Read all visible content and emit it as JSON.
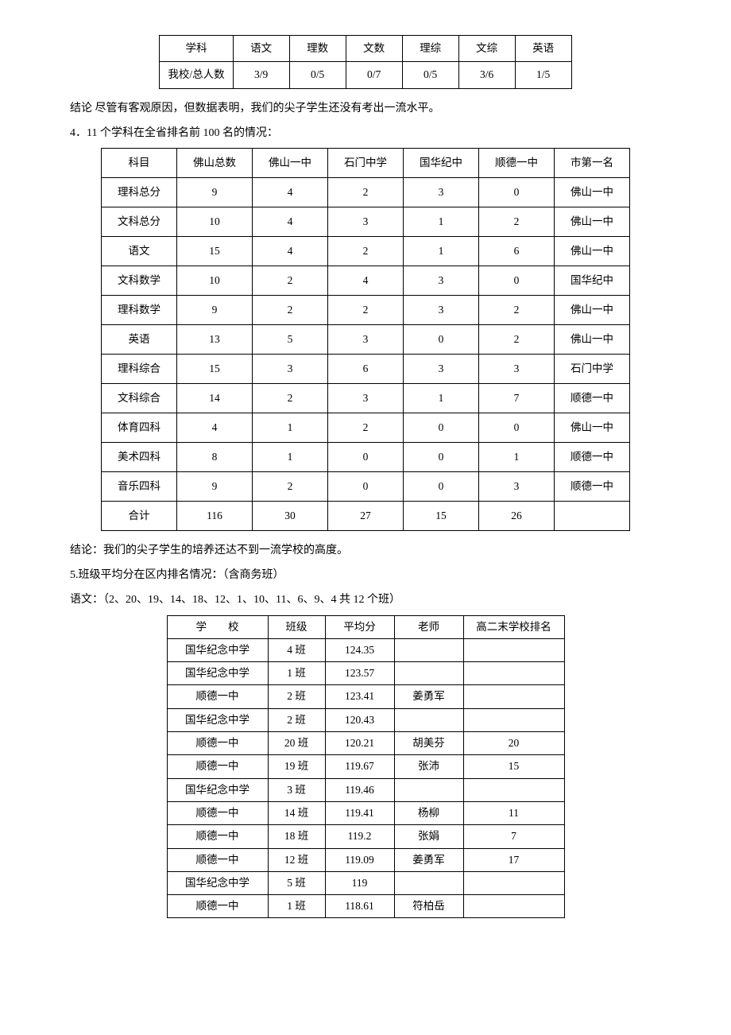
{
  "table1": {
    "headers": [
      "学科",
      "语文",
      "理数",
      "文数",
      "理综",
      "文综",
      "英语"
    ],
    "rowLabel": "我校/总人数",
    "values": [
      "3/9",
      "0/5",
      "0/7",
      "0/5",
      "3/6",
      "1/5"
    ]
  },
  "para1": "结论 尽管有客观原因，但数据表明，我们的尖子学生还没有考出一流水平。",
  "para2": "4．11 个学科在全省排名前 100 名的情况：",
  "table2": {
    "headers": [
      "科目",
      "佛山总数",
      "佛山一中",
      "石门中学",
      "国华纪中",
      "顺德一中",
      "市第一名"
    ],
    "rows": [
      [
        "理科总分",
        "9",
        "4",
        "2",
        "3",
        "0",
        "佛山一中"
      ],
      [
        "文科总分",
        "10",
        "4",
        "3",
        "1",
        "2",
        "佛山一中"
      ],
      [
        "语文",
        "15",
        "4",
        "2",
        "1",
        "6",
        "佛山一中"
      ],
      [
        "文科数学",
        "10",
        "2",
        "4",
        "3",
        "0",
        "国华纪中"
      ],
      [
        "理科数学",
        "9",
        "2",
        "2",
        "3",
        "2",
        "佛山一中"
      ],
      [
        "英语",
        "13",
        "5",
        "3",
        "0",
        "2",
        "佛山一中"
      ],
      [
        "理科综合",
        "15",
        "3",
        "6",
        "3",
        "3",
        "石门中学"
      ],
      [
        "文科综合",
        "14",
        "2",
        "3",
        "1",
        "7",
        "顺德一中"
      ],
      [
        "体育四科",
        "4",
        "1",
        "2",
        "0",
        "0",
        "佛山一中"
      ],
      [
        "美术四科",
        "8",
        "1",
        "0",
        "0",
        "1",
        "顺德一中"
      ],
      [
        "音乐四科",
        "9",
        "2",
        "0",
        "0",
        "3",
        "顺德一中"
      ],
      [
        "合计",
        "116",
        "30",
        "27",
        "15",
        "26",
        ""
      ]
    ]
  },
  "para3": "结论：我们的尖子学生的培养还达不到一流学校的高度。",
  "para4": "5.班级平均分在区内排名情况：（含商务班）",
  "para5": "语文：（2、20、19、14、18、12、1、10、11、6、9、4 共 12 个班）",
  "table3": {
    "headers": [
      "学　　校",
      "班级",
      "平均分",
      "老师",
      "高二末学校排名"
    ],
    "rows": [
      [
        "国华纪念中学",
        "4 班",
        "124.35",
        "",
        ""
      ],
      [
        "国华纪念中学",
        "1 班",
        "123.57",
        "",
        ""
      ],
      [
        "顺德一中",
        "2 班",
        "123.41",
        "姜勇军",
        ""
      ],
      [
        "国华纪念中学",
        "2 班",
        "120.43",
        "",
        ""
      ],
      [
        "顺德一中",
        "20 班",
        "120.21",
        "胡美芬",
        "20"
      ],
      [
        "顺德一中",
        "19 班",
        "119.67",
        "张沛",
        "15"
      ],
      [
        "国华纪念中学",
        "3 班",
        "119.46",
        "",
        ""
      ],
      [
        "顺德一中",
        "14 班",
        "119.41",
        "杨柳",
        "11"
      ],
      [
        "顺德一中",
        "18 班",
        "119.2",
        "张娟",
        "7"
      ],
      [
        "顺德一中",
        "12 班",
        "119.09",
        "姜勇军",
        "17"
      ],
      [
        "国华纪念中学",
        "5 班",
        "119",
        "",
        ""
      ],
      [
        "顺德一中",
        "1 班",
        "118.61",
        "符柏岳",
        ""
      ]
    ]
  }
}
